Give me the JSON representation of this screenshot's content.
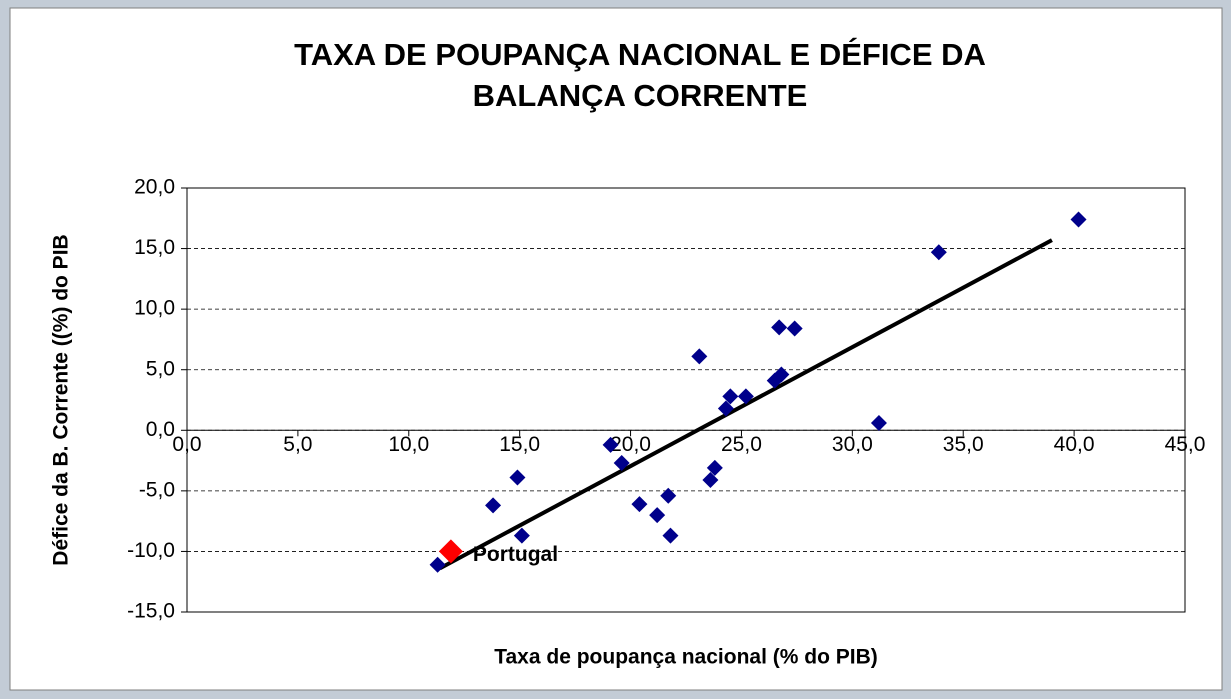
{
  "chart_data": {
    "type": "scatter",
    "title": [
      "TAXA DE POUPANÇA NACIONAL E DÉFICE DA",
      "BALANÇA CORRENTE"
    ],
    "x_label": "Taxa de poupança nacional (% do PIB)",
    "y_label": "Défice da B. Corrente ((%) do PIB",
    "xlim": [
      0,
      45
    ],
    "ylim": [
      -15,
      20
    ],
    "xticks": [
      {
        "value": 0,
        "label": "0,0"
      },
      {
        "value": 5,
        "label": "5,0"
      },
      {
        "value": 10,
        "label": "10,0"
      },
      {
        "value": 15,
        "label": "15,0"
      },
      {
        "value": 20,
        "label": "20,0"
      },
      {
        "value": 25,
        "label": "25,0"
      },
      {
        "value": 30,
        "label": "30,0"
      },
      {
        "value": 35,
        "label": "35,0"
      },
      {
        "value": 40,
        "label": "40,0"
      },
      {
        "value": 45,
        "label": "45,0"
      }
    ],
    "yticks": [
      {
        "value": -15,
        "label": "-15,0"
      },
      {
        "value": -10,
        "label": "-10,0"
      },
      {
        "value": -5,
        "label": "-5,0"
      },
      {
        "value": 0,
        "label": "0,0"
      },
      {
        "value": 5,
        "label": "5,0"
      },
      {
        "value": 10,
        "label": "10,0"
      },
      {
        "value": 15,
        "label": "15,0"
      },
      {
        "value": 20,
        "label": "20,0"
      }
    ],
    "grid": true,
    "series": [
      {
        "color": "#00008b",
        "x": [
          40.2,
          33.9,
          26.7,
          27.4,
          23.1,
          26.8,
          26.5,
          24.5,
          25.2,
          24.3,
          31.2,
          19.1,
          19.6,
          23.8,
          23.6,
          14.9,
          13.8,
          20.4,
          21.7,
          21.2,
          15.1,
          21.8,
          11.3
        ],
        "values": [
          17.4,
          14.7,
          8.5,
          8.4,
          6.1,
          4.6,
          4.1,
          2.8,
          2.8,
          1.8,
          0.6,
          -1.2,
          -2.7,
          -3.1,
          -4.1,
          -3.9,
          -6.2,
          -6.1,
          -5.4,
          -7.0,
          -8.7,
          -8.7,
          -11.1
        ]
      },
      {
        "color": "#ff0000",
        "x": [
          11.9
        ],
        "values": [
          -10.0
        ]
      }
    ],
    "annotation": "Portugal",
    "trendline": {
      "color": "#000000",
      "x": [
        11.4,
        39.0
      ],
      "values": [
        -11.4,
        15.7
      ]
    }
  }
}
